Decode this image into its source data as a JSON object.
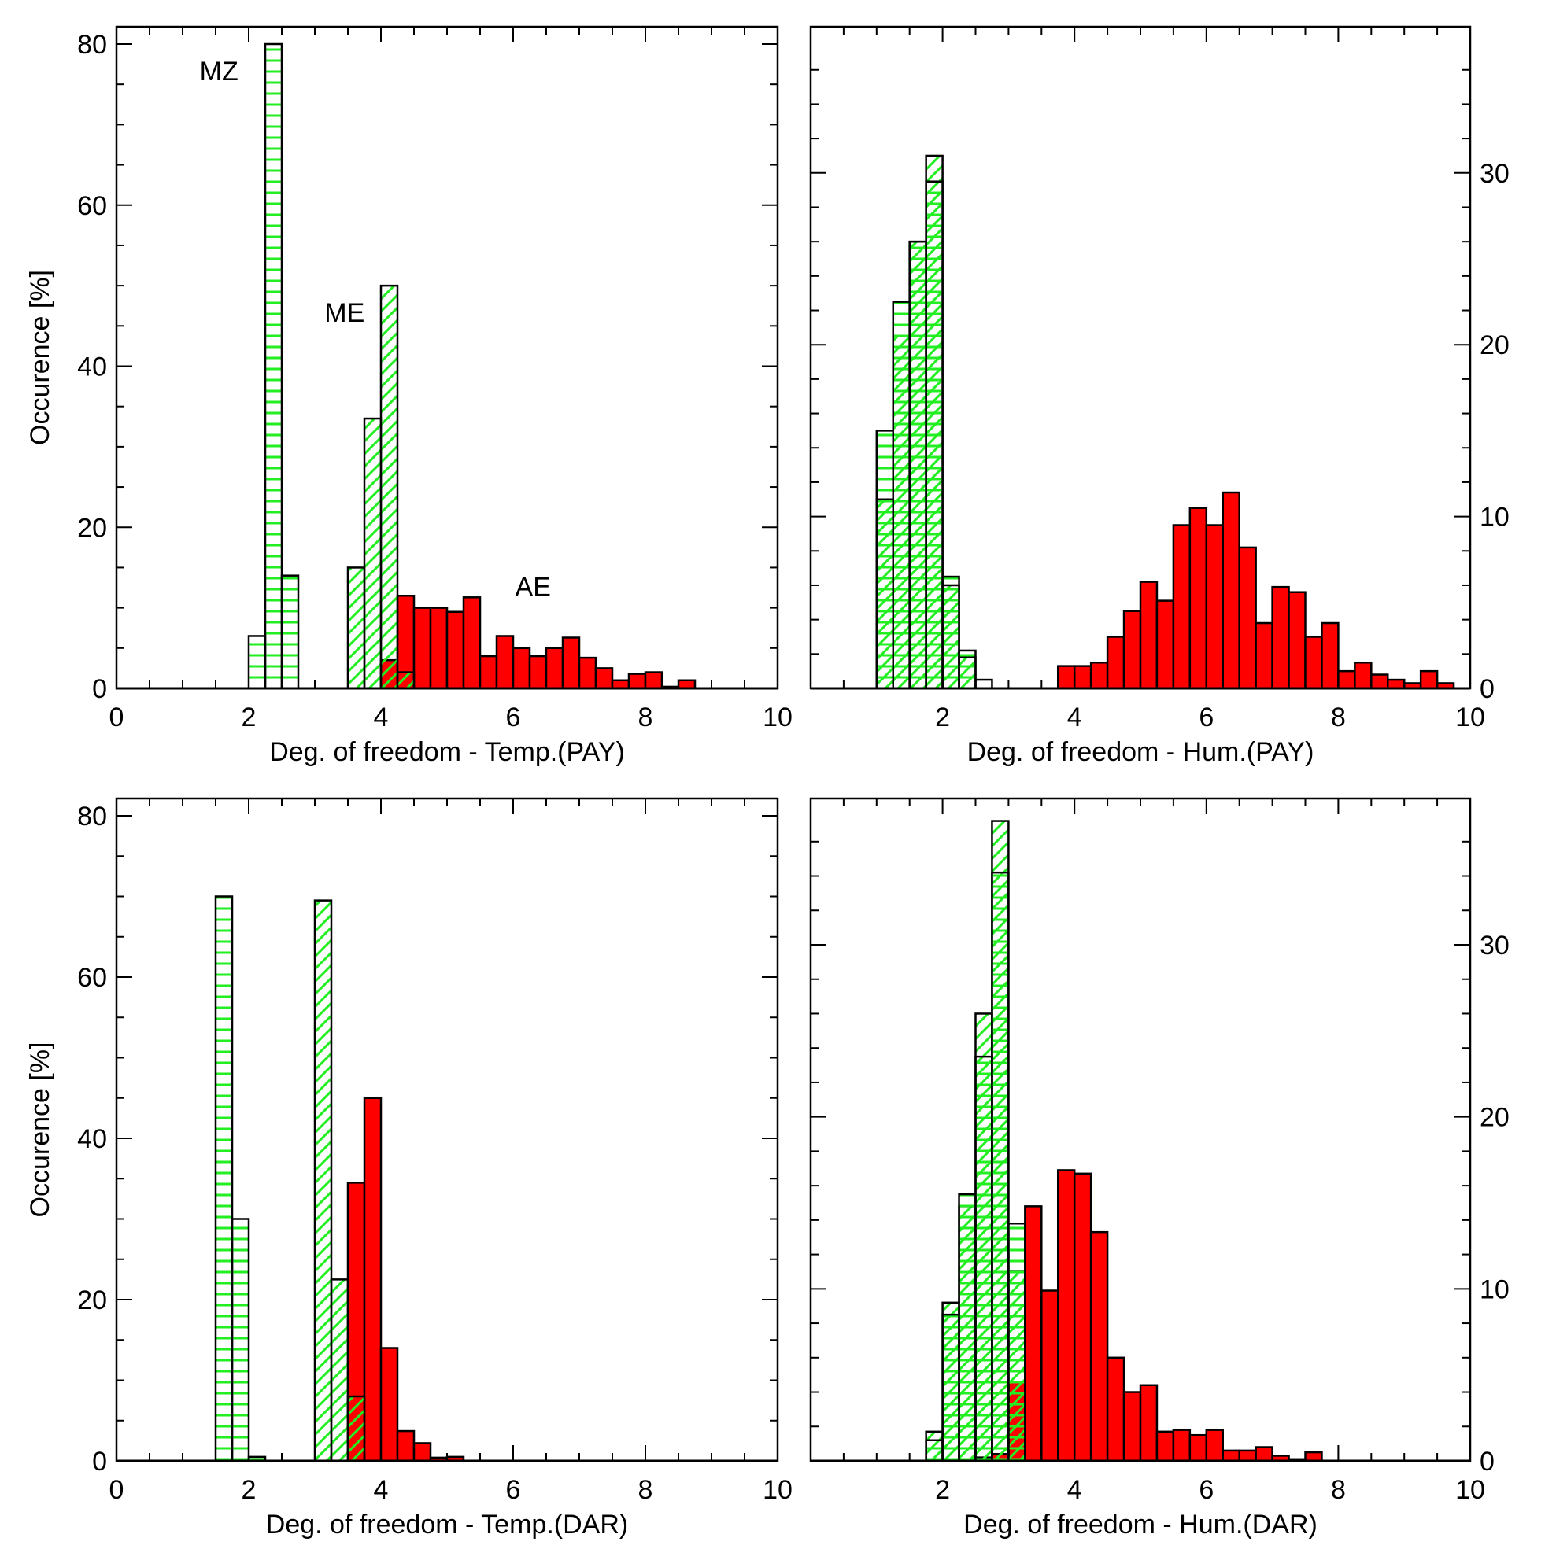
{
  "colors": {
    "frame": "#000000",
    "ae_fill": "#ff0000",
    "hatch": "#22ee22",
    "bar_outline": "#000000"
  },
  "y_axis_label": "Occurence [%]",
  "chart_data": [
    {
      "type": "bar",
      "panel": "top-left",
      "xlabel": "Deg. of freedom - Temp.(PAY)",
      "ylabel": "Occurence [%]",
      "xlim": [
        0,
        10
      ],
      "ylim": [
        0,
        80
      ],
      "xticks": [
        "0",
        "2",
        "4",
        "6",
        "8",
        "10"
      ],
      "yticks": [
        "0",
        "20",
        "40",
        "60",
        "80"
      ],
      "y_axis_side": "left",
      "bin_width": 0.25,
      "annotations": [
        {
          "text": "MZ",
          "x": 1.55,
          "y": 75.5
        },
        {
          "text": "ME",
          "x": 3.45,
          "y": 45.5
        },
        {
          "text": "AE",
          "x": 6.3,
          "y": 11.5
        }
      ],
      "series": [
        {
          "name": "MZ",
          "pattern": "horizontal-hatch",
          "x": [
            2.125,
            2.375,
            2.625
          ],
          "values": [
            6.5,
            80,
            14
          ]
        },
        {
          "name": "ME",
          "pattern": "diagonal-hatch",
          "x": [
            3.625,
            3.875,
            4.125,
            4.375
          ],
          "values": [
            15,
            33.5,
            50,
            2
          ]
        },
        {
          "name": "AE",
          "pattern": "solid",
          "x": [
            4.125,
            4.375,
            4.625,
            4.875,
            5.125,
            5.375,
            5.625,
            5.875,
            6.125,
            6.375,
            6.625,
            6.875,
            7.125,
            7.375,
            7.625,
            7.875,
            8.125,
            8.375,
            8.625
          ],
          "values": [
            3.5,
            11.5,
            10,
            10,
            9.5,
            11.3,
            4,
            6.5,
            5,
            4,
            5,
            6.3,
            3.8,
            2.5,
            1,
            1.8,
            2,
            0.2,
            1
          ]
        }
      ]
    },
    {
      "type": "bar",
      "panel": "top-right",
      "xlabel": "Deg. of freedom - Hum.(PAY)",
      "xlim": [
        0,
        10
      ],
      "ylim": [
        0,
        37.5
      ],
      "xticks": [
        "",
        "2",
        "4",
        "6",
        "8",
        "10"
      ],
      "yticks": [
        "0",
        "10",
        "20",
        "30"
      ],
      "y_axis_side": "right",
      "bin_width": 0.25,
      "series": [
        {
          "name": "MZ",
          "pattern": "horizontal-hatch",
          "x": [
            1.125,
            1.375,
            1.625,
            1.875,
            2.125,
            2.375,
            2.625
          ],
          "values": [
            15,
            22.5,
            26,
            29.5,
            6.5,
            2.2,
            0.5
          ]
        },
        {
          "name": "ME",
          "pattern": "diagonal-hatch",
          "x": [
            1.125,
            1.375,
            1.625,
            1.875,
            2.125,
            2.375
          ],
          "values": [
            11,
            20.5,
            26,
            31,
            6,
            1.8
          ]
        },
        {
          "name": "AE",
          "pattern": "solid",
          "x": [
            3.875,
            4.125,
            4.375,
            4.625,
            4.875,
            5.125,
            5.375,
            5.625,
            5.875,
            6.125,
            6.375,
            6.625,
            6.875,
            7.125,
            7.375,
            7.625,
            7.875,
            8.125,
            8.375,
            8.625,
            8.875,
            9.125,
            9.375,
            9.625
          ],
          "values": [
            1.3,
            1.3,
            1.5,
            3,
            4.5,
            6.2,
            5.1,
            9.5,
            10.5,
            9.5,
            11.4,
            8.2,
            3.8,
            5.9,
            5.6,
            3,
            3.8,
            1,
            1.5,
            0.8,
            0.5,
            0.3,
            1,
            0.3
          ]
        }
      ]
    },
    {
      "type": "bar",
      "panel": "bottom-left",
      "xlabel": "Deg. of freedom - Temp.(DAR)",
      "ylabel": "Occurence [%]",
      "xlim": [
        0,
        10
      ],
      "ylim": [
        0,
        80
      ],
      "xticks": [
        "0",
        "2",
        "4",
        "6",
        "8",
        "10"
      ],
      "yticks": [
        "0",
        "20",
        "40",
        "60",
        "80"
      ],
      "y_axis_side": "left",
      "bin_width": 0.25,
      "series": [
        {
          "name": "MZ",
          "pattern": "horizontal-hatch",
          "x": [
            1.625,
            1.875,
            2.125
          ],
          "values": [
            70,
            30,
            0.5
          ]
        },
        {
          "name": "ME",
          "pattern": "diagonal-hatch",
          "x": [
            3.125,
            3.375,
            3.625
          ],
          "values": [
            69.5,
            22.5,
            8
          ]
        },
        {
          "name": "AE",
          "pattern": "solid",
          "x": [
            3.625,
            3.875,
            4.125,
            4.375,
            4.625,
            4.875,
            5.125
          ],
          "values": [
            34.5,
            45,
            14,
            3.7,
            2.2,
            0.4,
            0.5
          ]
        }
      ]
    },
    {
      "type": "bar",
      "panel": "bottom-right",
      "xlabel": "Deg. of freedom - Hum.(DAR)",
      "xlim": [
        0,
        10
      ],
      "ylim": [
        0,
        37.5
      ],
      "xticks": [
        "",
        "2",
        "4",
        "6",
        "8",
        "10"
      ],
      "yticks": [
        "0",
        "10",
        "20",
        "30"
      ],
      "y_axis_side": "right",
      "bin_width": 0.25,
      "series": [
        {
          "name": "MZ",
          "pattern": "horizontal-hatch",
          "x": [
            1.875,
            2.125,
            2.375,
            2.625,
            2.875,
            3.125
          ],
          "values": [
            1.2,
            8.5,
            15.5,
            23.5,
            34.2,
            13.8
          ]
        },
        {
          "name": "ME",
          "pattern": "diagonal-hatch",
          "x": [
            1.875,
            2.125,
            2.375,
            2.625,
            2.875,
            3.125
          ],
          "values": [
            1.7,
            9.2,
            14.8,
            26,
            37.2,
            11
          ]
        },
        {
          "name": "AE",
          "pattern": "solid",
          "x": [
            2.625,
            2.875,
            3.125,
            3.375,
            3.625,
            3.875,
            4.125,
            4.375,
            4.625,
            4.875,
            5.125,
            5.375,
            5.625,
            5.875,
            6.125,
            6.375,
            6.625,
            6.875,
            7.125,
            7.375,
            7.625
          ],
          "values": [
            0.2,
            0.4,
            4.6,
            14.8,
            9.9,
            16.9,
            16.7,
            13.3,
            6,
            4,
            4.4,
            1.7,
            1.8,
            1.5,
            1.8,
            0.6,
            0.6,
            0.8,
            0.3,
            0.1,
            0.5
          ]
        }
      ]
    }
  ]
}
